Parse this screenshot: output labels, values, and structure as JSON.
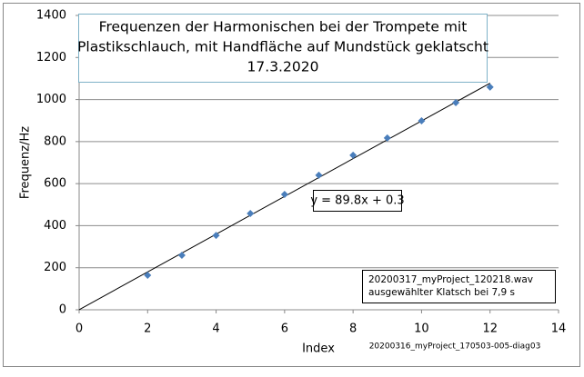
{
  "chart_data": {
    "type": "scatter",
    "title": [
      "Frequenzen der Harmonischen bei der Trompete mit",
      "Plastikschlauch, mit Handfläche auf Mundstück geklatscht",
      "17.3.2020"
    ],
    "x_label": "Index",
    "y_label": "Frequenz/Hz",
    "series": [
      {
        "color": "#4a7ebb",
        "x": [
          2,
          3,
          4,
          5,
          6,
          7,
          8,
          9,
          10,
          11,
          12
        ],
        "values": [
          164,
          259,
          354,
          458,
          549,
          640,
          735,
          817,
          899,
          985,
          1059
        ]
      }
    ],
    "trendline": {
      "label": "y = 89.8x + 0.3",
      "slope": 89.8,
      "intercept": 0.3,
      "color": "#000000"
    },
    "xlim": [
      0,
      14
    ],
    "xticks": [
      0,
      2,
      4,
      6,
      8,
      10,
      12,
      14
    ],
    "ylim": [
      0,
      1400
    ],
    "yticks": [
      0,
      200,
      400,
      600,
      800,
      1000,
      1200,
      1400
    ],
    "grid": true,
    "note": [
      "20200317_myProject_120218.wav",
      "ausgewählter Klatsch bei 7,9 s"
    ],
    "footer": "20200316_myProject_170503-005-diag03"
  }
}
